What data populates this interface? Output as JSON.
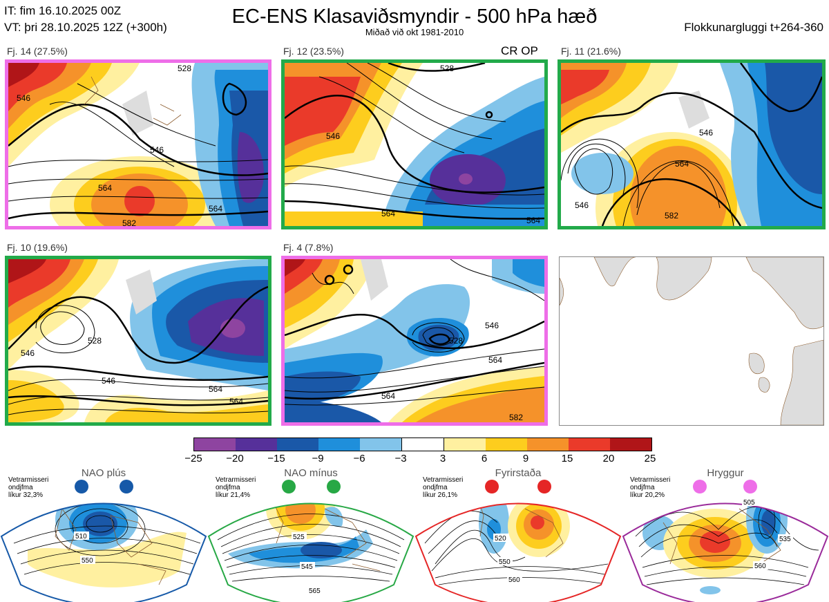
{
  "header": {
    "it": "IT: fim 16.10.2025 00Z",
    "vt": "VT: þri 28.10.2025 12Z  (+300h)",
    "title": "EC-ENS Klasaviðsmyndir - 500 hPa hæð",
    "subtitle": "Miðað við okt 1981-2010",
    "window": "Flokkunargluggi t+264-360"
  },
  "panels": [
    {
      "label": "Fj. 14 (27.5%)",
      "frame": "#ee6ee8",
      "contours": [
        "546",
        "546",
        "564",
        "564",
        "528",
        "582"
      ]
    },
    {
      "label": "Fj. 12 (23.5%)",
      "frame": "#22aa4a",
      "crop_op": "CR OP",
      "contours": [
        "546",
        "564",
        "528",
        "564"
      ]
    },
    {
      "label": "Fj. 11 (21.6%)",
      "frame": "#22aa4a",
      "contours": [
        "546",
        "564",
        "582",
        "546"
      ]
    },
    {
      "label": "Fj. 10 (19.6%)",
      "frame": "#22aa4a",
      "contours": [
        "528",
        "546",
        "546",
        "564",
        "564"
      ]
    },
    {
      "label": "Fj. 4 (7.8%)",
      "frame": "#ee6ee8",
      "contours": [
        "546",
        "528",
        "564",
        "564",
        "582"
      ]
    }
  ],
  "colorbar": {
    "ticks": [
      "−25",
      "−20",
      "−15",
      "−9",
      "−6",
      "−3",
      "3",
      "6",
      "9",
      "15",
      "20",
      "25"
    ],
    "colors": [
      "#8e44a0",
      "#56309a",
      "#1a58a8",
      "#1f8fdb",
      "#82c4ea",
      "#ffffff",
      "#fff0a0",
      "#fdcd1e",
      "#f5922a",
      "#ea3a2a",
      "#b01518"
    ]
  },
  "regimes": [
    {
      "name": "NAO plús",
      "lines": [
        "Vetrarmisseri",
        "ondjfma",
        "líkur 32,3%"
      ],
      "color": "#1659a8",
      "labels": [
        "510",
        "550"
      ]
    },
    {
      "name": "NAO mínus",
      "lines": [
        "Vetrarmisseri",
        "ondjfma",
        "líkur 21,4%"
      ],
      "color": "#27a845",
      "labels": [
        "525",
        "545",
        "565"
      ]
    },
    {
      "name": "Fyrirstaða",
      "lines": [
        "Vetrarmisseri",
        "ondjfma",
        "líkur 26,1%"
      ],
      "color": "#e52626",
      "labels": [
        "520",
        "550",
        "560"
      ]
    },
    {
      "name": "Hryggur",
      "lines": [
        "Vetrarmisseri",
        "ondjfma",
        "líkur 20,2%"
      ],
      "color": "#9a2a9a",
      "labels": [
        "505",
        "535",
        "560"
      ]
    }
  ]
}
